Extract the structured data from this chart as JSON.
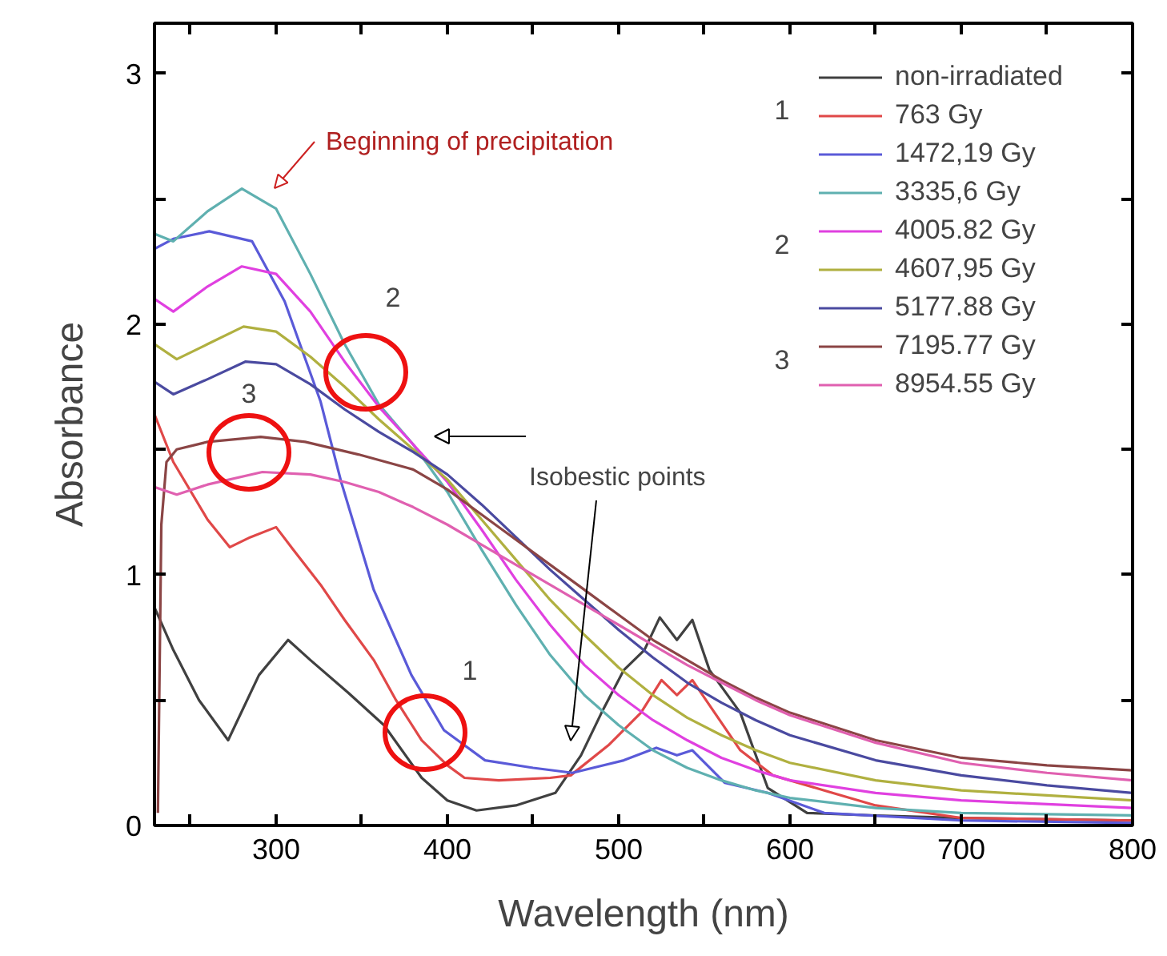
{
  "chart_data": {
    "type": "line",
    "xlabel": "Wavelength (nm)",
    "ylabel": "Absorbance",
    "xlim": [
      229,
      800
    ],
    "ylim": [
      0,
      3.2
    ],
    "xticks": [
      {
        "value": 250,
        "label": null
      },
      300,
      {
        "value": 350,
        "label": null
      },
      400,
      {
        "value": 450,
        "label": null
      },
      500,
      {
        "value": 550,
        "label": null
      },
      600,
      {
        "value": 650,
        "label": null
      },
      700,
      {
        "value": 750,
        "label": null
      },
      800
    ],
    "yticks": [
      0,
      {
        "value": 0.5,
        "label": null
      },
      1,
      {
        "value": 1.5,
        "label": null
      },
      2,
      {
        "value": 2.5,
        "label": null
      },
      3
    ],
    "grid": false,
    "legend": "top right",
    "marker": "none",
    "line_style": "solid",
    "series": [
      {
        "name": "non-irradiated",
        "color": "#404040",
        "x": [
          229,
          240,
          255,
          272,
          290,
          307,
          320,
          342,
          363,
          385,
          400,
          417,
          440,
          463,
          478,
          490,
          503,
          515,
          524,
          534,
          543,
          553,
          571,
          587,
          610,
          650,
          700,
          800
        ],
        "values": [
          0.87,
          0.7,
          0.5,
          0.34,
          0.6,
          0.74,
          0.66,
          0.53,
          0.4,
          0.19,
          0.1,
          0.06,
          0.08,
          0.13,
          0.28,
          0.45,
          0.62,
          0.7,
          0.83,
          0.74,
          0.82,
          0.62,
          0.45,
          0.15,
          0.05,
          0.04,
          0.03,
          0.02
        ]
      },
      {
        "name": "763 Gy",
        "color": "#e04848",
        "x": [
          229,
          240,
          260,
          273,
          285,
          300,
          310,
          326,
          340,
          357,
          370,
          385,
          400,
          410,
          430,
          460,
          472,
          494,
          513,
          525,
          534,
          543,
          556,
          571,
          590,
          620,
          650,
          700,
          800
        ],
        "values": [
          1.64,
          1.45,
          1.22,
          1.11,
          1.15,
          1.19,
          1.1,
          0.96,
          0.82,
          0.66,
          0.5,
          0.34,
          0.24,
          0.19,
          0.18,
          0.19,
          0.2,
          0.32,
          0.45,
          0.58,
          0.52,
          0.58,
          0.45,
          0.3,
          0.2,
          0.14,
          0.08,
          0.03,
          0.02
        ]
      },
      {
        "name": "1472,19 Gy",
        "color": "#5a5ad8",
        "x": [
          229,
          240,
          261,
          286,
          305,
          326,
          338,
          357,
          379,
          398,
          422,
          450,
          473,
          503,
          522,
          534,
          543,
          562,
          587,
          620,
          700,
          800
        ],
        "values": [
          2.3,
          2.34,
          2.37,
          2.33,
          2.09,
          1.69,
          1.37,
          0.94,
          0.6,
          0.38,
          0.26,
          0.23,
          0.21,
          0.26,
          0.31,
          0.28,
          0.3,
          0.17,
          0.13,
          0.05,
          0.02,
          0.01
        ]
      },
      {
        "name": "3335,6 Gy",
        "color": "#5fb0b0",
        "x": [
          229,
          240,
          260,
          280,
          300,
          320,
          340,
          360,
          380,
          400,
          420,
          440,
          460,
          480,
          500,
          520,
          540,
          560,
          580,
          600,
          650,
          700,
          800
        ],
        "values": [
          2.36,
          2.33,
          2.45,
          2.54,
          2.46,
          2.2,
          1.92,
          1.68,
          1.52,
          1.33,
          1.1,
          0.88,
          0.68,
          0.52,
          0.4,
          0.3,
          0.23,
          0.18,
          0.14,
          0.11,
          0.07,
          0.05,
          0.04
        ]
      },
      {
        "name": "4005.82 Gy",
        "color": "#e040e0",
        "x": [
          229,
          240,
          260,
          280,
          300,
          320,
          340,
          360,
          380,
          400,
          420,
          440,
          460,
          480,
          500,
          520,
          540,
          560,
          580,
          600,
          650,
          700,
          800
        ],
        "values": [
          2.1,
          2.05,
          2.15,
          2.23,
          2.2,
          2.05,
          1.85,
          1.67,
          1.52,
          1.37,
          1.18,
          0.98,
          0.8,
          0.64,
          0.52,
          0.42,
          0.34,
          0.27,
          0.22,
          0.18,
          0.13,
          0.1,
          0.07
        ]
      },
      {
        "name": "4607,95 Gy",
        "color": "#b0b040",
        "x": [
          229,
          242,
          260,
          281,
          300,
          320,
          340,
          360,
          380,
          400,
          420,
          440,
          460,
          480,
          500,
          520,
          540,
          560,
          580,
          600,
          650,
          700,
          800
        ],
        "values": [
          1.92,
          1.86,
          1.92,
          1.99,
          1.97,
          1.87,
          1.75,
          1.62,
          1.5,
          1.38,
          1.22,
          1.06,
          0.9,
          0.76,
          0.63,
          0.52,
          0.43,
          0.36,
          0.3,
          0.25,
          0.18,
          0.14,
          0.1
        ]
      },
      {
        "name": "5177.88 Gy",
        "color": "#4a4aa0",
        "x": [
          229,
          240,
          260,
          282,
          300,
          320,
          340,
          360,
          380,
          400,
          420,
          440,
          460,
          480,
          500,
          520,
          540,
          560,
          580,
          600,
          650,
          700,
          750,
          800
        ],
        "values": [
          1.77,
          1.72,
          1.78,
          1.85,
          1.84,
          1.76,
          1.66,
          1.57,
          1.49,
          1.4,
          1.28,
          1.15,
          1.02,
          0.9,
          0.78,
          0.67,
          0.57,
          0.49,
          0.42,
          0.36,
          0.26,
          0.2,
          0.16,
          0.13
        ]
      },
      {
        "name": "7195.77 Gy",
        "color": "#8b4545",
        "x": [
          231,
          233,
          236,
          242,
          260,
          291,
          317,
          348,
          380,
          400,
          420,
          440,
          460,
          480,
          500,
          520,
          540,
          560,
          580,
          600,
          650,
          700,
          750,
          800
        ],
        "values": [
          0.05,
          1.2,
          1.45,
          1.5,
          1.53,
          1.55,
          1.53,
          1.48,
          1.42,
          1.34,
          1.24,
          1.14,
          1.04,
          0.94,
          0.84,
          0.74,
          0.66,
          0.58,
          0.51,
          0.45,
          0.34,
          0.27,
          0.24,
          0.22
        ]
      },
      {
        "name": "8954.55 Gy",
        "color": "#e060b0",
        "x": [
          229,
          242,
          260,
          292,
          320,
          340,
          360,
          380,
          400,
          420,
          440,
          460,
          480,
          500,
          520,
          540,
          560,
          580,
          600,
          650,
          700,
          750,
          800
        ],
        "values": [
          1.35,
          1.32,
          1.36,
          1.41,
          1.4,
          1.37,
          1.33,
          1.27,
          1.2,
          1.12,
          1.04,
          0.96,
          0.88,
          0.8,
          0.72,
          0.64,
          0.57,
          0.5,
          0.44,
          0.33,
          0.25,
          0.21,
          0.18
        ]
      }
    ],
    "annotations": [
      "Beginning of precipitation",
      "1",
      "2",
      "3",
      "Isobestic points",
      "1",
      "2",
      "3"
    ]
  }
}
